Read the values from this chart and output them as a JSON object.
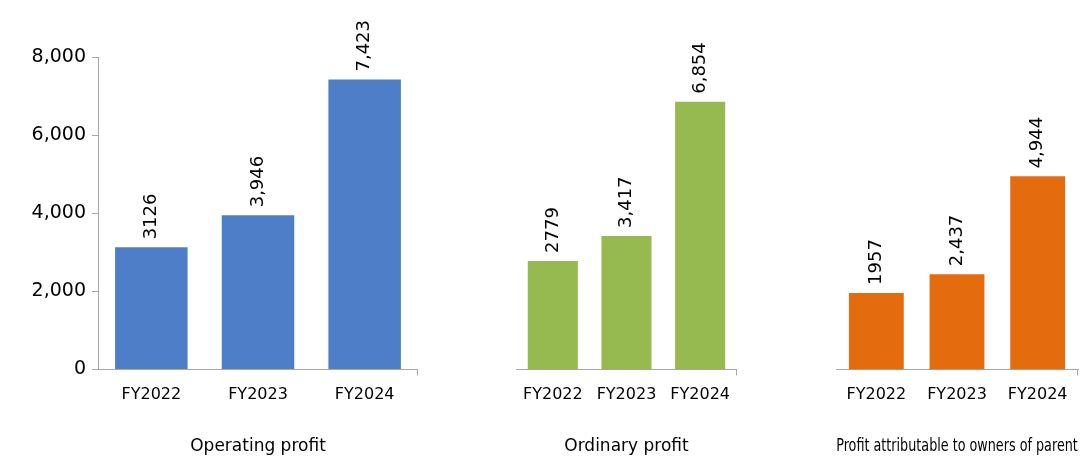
{
  "chart_data": [
    {
      "type": "bar",
      "xlabel": "Operating profit",
      "categories": [
        "FY2022",
        "FY2023",
        "FY2024"
      ],
      "values": [
        3126,
        3946,
        7423
      ],
      "color": "#4f7ec8",
      "value_labels": [
        "3126",
        "3,946",
        "7,423"
      ],
      "ylim": [
        0,
        8000
      ],
      "yticks": [
        0,
        {
          "value": 2000,
          "label": "2,000"
        },
        {
          "value": 4000,
          "label": "4,000"
        },
        {
          "value": 6000,
          "label": "6,000"
        },
        {
          "value": 8000,
          "label": "8,000"
        }
      ]
    },
    {
      "type": "bar",
      "xlabel": "Ordinary profit",
      "categories": [
        "FY2022",
        "FY2023",
        "FY2024"
      ],
      "values": [
        2779,
        3417,
        6854
      ],
      "color": "#97ba50",
      "value_labels": [
        "2779",
        "3,417",
        "6,854"
      ],
      "ylim": [
        0,
        8000
      ],
      "tick_labels": "x"
    },
    {
      "type": "bar",
      "xlabel": "Profit attributable to owners of parent",
      "categories": [
        "FY2022",
        "FY2023",
        "FY2024"
      ],
      "values": [
        1957,
        2437,
        4944
      ],
      "color": "#e46c0e",
      "value_labels": [
        "1957",
        "2,437",
        "4,944"
      ],
      "ylim": [
        0,
        8000
      ],
      "tick_labels": "x"
    }
  ]
}
